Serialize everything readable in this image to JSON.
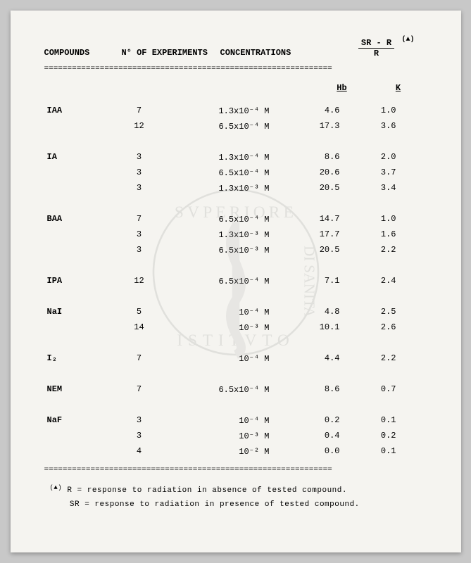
{
  "headers": {
    "compounds": "COMPOUNDS",
    "nexp": "N° OF EXPERIMENTS",
    "conc": "CONCENTRATIONS",
    "frac_num": "SR - R",
    "frac_den": "R",
    "frac_sup": "(▲)"
  },
  "subheaders": {
    "hb": "Hb",
    "k": "K"
  },
  "double_rule": "==============================================================",
  "groups": [
    {
      "compound": "IAA",
      "rows": [
        {
          "n": "7",
          "conc": "1.3x10⁻⁴ M",
          "hb": "4.6",
          "k": "1.0"
        },
        {
          "n": "12",
          "conc": "6.5x10⁻⁴ M",
          "hb": "17.3",
          "k": "3.6"
        }
      ]
    },
    {
      "compound": "IA",
      "rows": [
        {
          "n": "3",
          "conc": "1.3x10⁻⁴ M",
          "hb": "8.6",
          "k": "2.0"
        },
        {
          "n": "3",
          "conc": "6.5x10⁻⁴ M",
          "hb": "20.6",
          "k": "3.7"
        },
        {
          "n": "3",
          "conc": "1.3x10⁻³ M",
          "hb": "20.5",
          "k": "3.4"
        }
      ]
    },
    {
      "compound": "BAA",
      "rows": [
        {
          "n": "7",
          "conc": "6.5x10⁻⁴ M",
          "hb": "14.7",
          "k": "1.0"
        },
        {
          "n": "3",
          "conc": "1.3x10⁻³ M",
          "hb": "17.7",
          "k": "1.6"
        },
        {
          "n": "3",
          "conc": "6.5x10⁻³ M",
          "hb": "20.5",
          "k": "2.2"
        }
      ]
    },
    {
      "compound": "IPA",
      "rows": [
        {
          "n": "12",
          "conc": "6.5x10⁻⁴ M",
          "hb": "7.1",
          "k": "2.4"
        }
      ]
    },
    {
      "compound": "NaI",
      "rows": [
        {
          "n": "5",
          "conc": "10⁻⁴ M",
          "hb": "4.8",
          "k": "2.5"
        },
        {
          "n": "14",
          "conc": "10⁻³ M",
          "hb": "10.1",
          "k": "2.6"
        }
      ]
    },
    {
      "compound": "I₂",
      "rows": [
        {
          "n": "7",
          "conc": "10⁻⁴ M",
          "hb": "4.4",
          "k": "2.2"
        }
      ]
    },
    {
      "compound": "NEM",
      "rows": [
        {
          "n": "7",
          "conc": "6.5x10⁻⁴ M",
          "hb": "8.6",
          "k": "0.7"
        }
      ]
    },
    {
      "compound": "NaF",
      "rows": [
        {
          "n": "3",
          "conc": "10⁻⁴ M",
          "hb": "0.2",
          "k": "0.1"
        },
        {
          "n": "3",
          "conc": "10⁻³ M",
          "hb": "0.4",
          "k": "0.2"
        },
        {
          "n": "4",
          "conc": "10⁻² M",
          "hb": "0.0",
          "k": "0.1"
        }
      ]
    }
  ],
  "footnotes": {
    "marker": "(▲)",
    "line1": "R = response to radiation in absence of tested compound.",
    "line2": "SR = response to radiation in presence of tested compound."
  },
  "colors": {
    "bg": "#c8c8c8",
    "paper": "#f5f4f0",
    "text": "#111111"
  }
}
